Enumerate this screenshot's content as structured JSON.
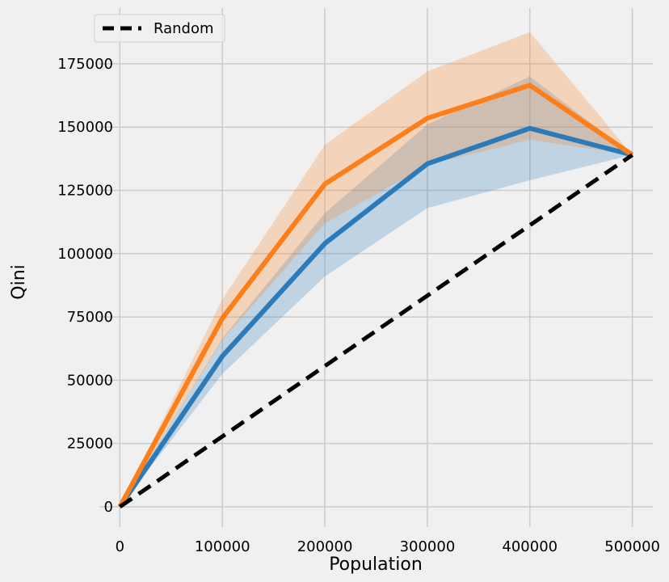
{
  "chart_data": {
    "type": "line",
    "title": "",
    "xlabel": "Population",
    "ylabel": "Qini",
    "xlim": [
      -20000,
      520000
    ],
    "ylim": [
      -8000,
      197000
    ],
    "grid": true,
    "legend_placement": "top-left",
    "x": [
      0,
      100000,
      200000,
      300000,
      400000,
      500000
    ],
    "xticks": [
      0,
      100000,
      200000,
      300000,
      400000,
      500000
    ],
    "yticks": [
      0,
      25000,
      50000,
      75000,
      100000,
      125000,
      150000,
      175000
    ],
    "series": [
      {
        "name": "",
        "color": "#2b7bba",
        "values": [
          0,
          59500,
          104000,
          135500,
          149500,
          139000
        ],
        "lower": [
          0,
          52500,
          91000,
          118000,
          129000,
          139000
        ],
        "upper": [
          0,
          66500,
          116000,
          151000,
          170000,
          139000
        ]
      },
      {
        "name": "",
        "color": "#fc7f1b",
        "values": [
          0,
          74500,
          127500,
          153500,
          166500,
          139000
        ],
        "lower": [
          0,
          66000,
          112000,
          135000,
          145000,
          139000
        ],
        "upper": [
          0,
          82000,
          143000,
          172000,
          187500,
          139000
        ]
      },
      {
        "name": "Random",
        "color": "#000000",
        "dashed": true,
        "values": [
          0,
          27800,
          55600,
          83400,
          111200,
          139000
        ]
      }
    ]
  }
}
